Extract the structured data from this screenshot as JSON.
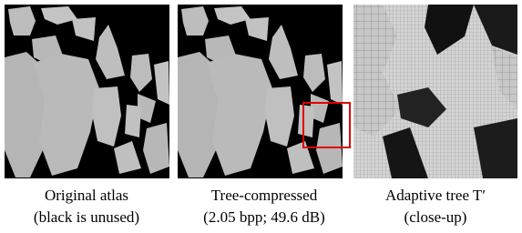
{
  "figure": {
    "panels": [
      {
        "caption": [
          "Original atlas",
          "(black is unused)"
        ]
      },
      {
        "caption": [
          "Tree-compressed",
          "(2.05 bpp; 49.6 dB)"
        ]
      },
      {
        "caption": [
          "Adaptive tree T′",
          "(close-up)"
        ]
      }
    ]
  }
}
